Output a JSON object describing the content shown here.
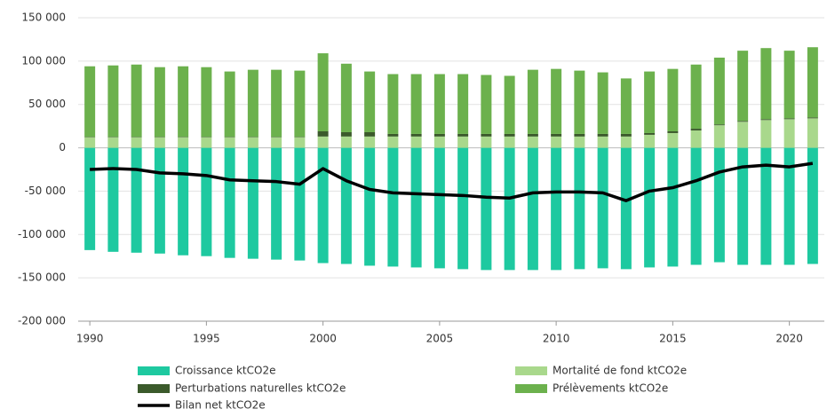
{
  "chart_data": {
    "type": "bar",
    "stacked": true,
    "x": [
      1990,
      1991,
      1992,
      1993,
      1994,
      1995,
      1996,
      1997,
      1998,
      1999,
      2000,
      2001,
      2002,
      2003,
      2004,
      2005,
      2006,
      2007,
      2008,
      2009,
      2010,
      2011,
      2012,
      2013,
      2014,
      2015,
      2016,
      2017,
      2018,
      2019,
      2020,
      2021
    ],
    "xlim": [
      1989.5,
      2021.5
    ],
    "xticks": [
      1990,
      1995,
      2000,
      2005,
      2010,
      2015,
      2020
    ],
    "ylim": [
      -200000,
      150000
    ],
    "yticks": [
      {
        "value": -200000,
        "label": "-200 000"
      },
      {
        "value": -150000,
        "label": "-150 000"
      },
      {
        "value": -100000,
        "label": "-100 000"
      },
      {
        "value": -50000,
        "label": "-50 000"
      },
      0,
      {
        "value": 50000,
        "label": "50 000"
      },
      {
        "value": 100000,
        "label": "100 000"
      },
      {
        "value": 150000,
        "label": "150 000"
      }
    ],
    "grid": true,
    "legend": "bottom",
    "series": [
      {
        "name": "Croissance ktCO2e",
        "color": "#1ec9a0",
        "values": [
          -118000,
          -120000,
          -121000,
          -122000,
          -124000,
          -125000,
          -127000,
          -128000,
          -129000,
          -130000,
          -133000,
          -134000,
          -136000,
          -137000,
          -138000,
          -139000,
          -140000,
          -141000,
          -141000,
          -141000,
          -141000,
          -140000,
          -139000,
          -140000,
          -138000,
          -137000,
          -135000,
          -132000,
          -135000,
          -135000,
          -135000,
          -134000
        ]
      },
      {
        "name": "Mortalité de fond ktCO2e",
        "color": "#a9d88c",
        "values": [
          12000,
          12000,
          12000,
          12000,
          12000,
          12000,
          12000,
          12000,
          12000,
          12000,
          13000,
          13000,
          13000,
          13000,
          13000,
          13000,
          13000,
          13000,
          13000,
          13000,
          13000,
          13000,
          13000,
          13000,
          15000,
          17000,
          20000,
          26000,
          30000,
          32000,
          33000,
          34000
        ]
      },
      {
        "name": "Perturbations naturelles ktCO2e",
        "color": "#3b5a2b",
        "values": [
          500,
          500,
          500,
          500,
          500,
          500,
          500,
          500,
          500,
          500,
          6000,
          5000,
          5000,
          3000,
          3000,
          3000,
          3000,
          3000,
          3000,
          3000,
          3000,
          3000,
          3000,
          3000,
          2000,
          2000,
          2000,
          1000,
          1000,
          1000,
          1000,
          1000
        ]
      },
      {
        "name": "Prélèvements ktCO2e",
        "color": "#6cb14d",
        "values": [
          81500,
          82500,
          83500,
          80500,
          81500,
          80500,
          75500,
          77500,
          77500,
          76500,
          90000,
          79000,
          70000,
          69000,
          69000,
          69000,
          69000,
          68000,
          67000,
          74000,
          75000,
          73000,
          71000,
          64000,
          71000,
          72000,
          74000,
          77000,
          81000,
          82000,
          78000,
          81000
        ]
      },
      {
        "name": "Bilan net ktCO2e",
        "color": "#000000",
        "type": "line",
        "values": [
          -25000,
          -24000,
          -25000,
          -29000,
          -30000,
          -32000,
          -37000,
          -38000,
          -39000,
          -42000,
          -24000,
          -38000,
          -48000,
          -52000,
          -53000,
          -54000,
          -55000,
          -57000,
          -58000,
          -52000,
          -51000,
          -51000,
          -52000,
          -61000,
          -50000,
          -46000,
          -38000,
          -28000,
          -22000,
          -20000,
          -22000,
          -18000
        ]
      }
    ]
  }
}
